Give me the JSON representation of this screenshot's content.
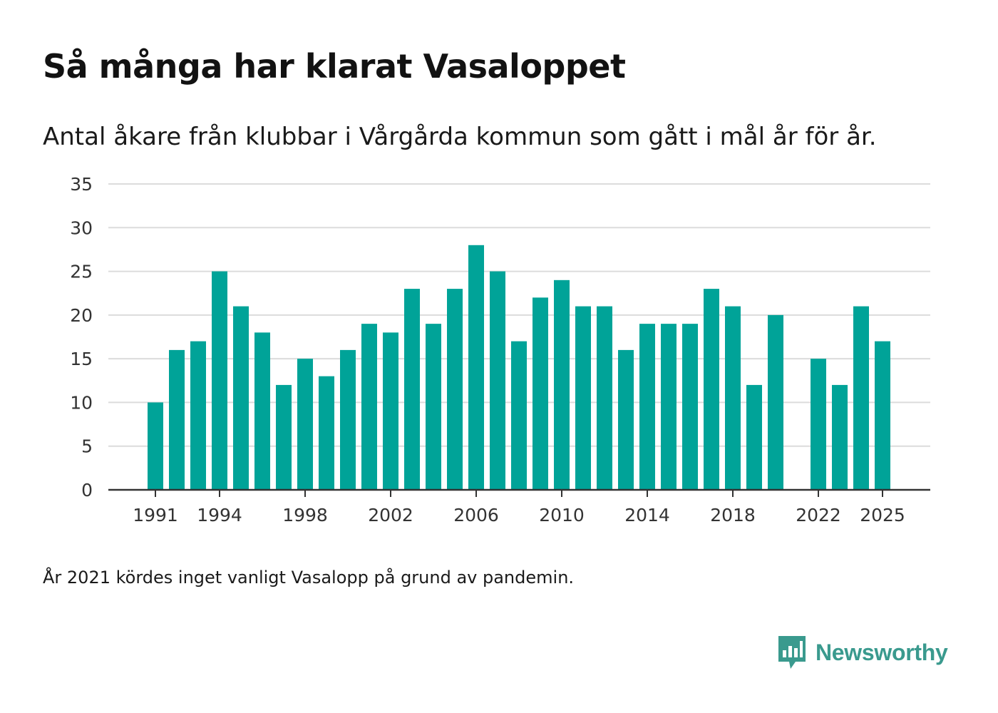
{
  "header": {
    "title": "Så många har klarat Vasaloppet",
    "subtitle": "Antal åkare från klubbar i Vårgårda kommun som gått i mål år för år."
  },
  "footnote": "År 2021 kördes inget vanligt Vasalopp på grund av pandemin.",
  "brand": {
    "name": "Newsworthy",
    "icon": "newsworthy-logo-icon",
    "color": "#3a9a8e"
  },
  "chart_data": {
    "type": "bar",
    "title": "Så många har klarat Vasaloppet",
    "subtitle": "Antal åkare från klubbar i Vårgårda kommun som gått i mål år för år.",
    "xlabel": "",
    "ylabel": "",
    "ylim": [
      0,
      35
    ],
    "yticks": [
      0,
      5,
      10,
      15,
      20,
      25,
      30,
      35
    ],
    "xticks": [
      1991,
      1994,
      1998,
      2002,
      2006,
      2010,
      2014,
      2018,
      2022,
      2025
    ],
    "grid": true,
    "bar_color": "#00a398",
    "categories": [
      1991,
      1992,
      1993,
      1994,
      1995,
      1996,
      1997,
      1998,
      1999,
      2000,
      2001,
      2002,
      2003,
      2004,
      2005,
      2006,
      2007,
      2008,
      2009,
      2010,
      2011,
      2012,
      2013,
      2014,
      2015,
      2016,
      2017,
      2018,
      2019,
      2020,
      2021,
      2022,
      2023,
      2024,
      2025
    ],
    "values": [
      10,
      16,
      17,
      25,
      21,
      18,
      12,
      15,
      13,
      16,
      19,
      18,
      23,
      19,
      23,
      28,
      25,
      17,
      22,
      24,
      21,
      21,
      16,
      19,
      19,
      19,
      23,
      21,
      12,
      20,
      null,
      15,
      12,
      21,
      17
    ]
  }
}
